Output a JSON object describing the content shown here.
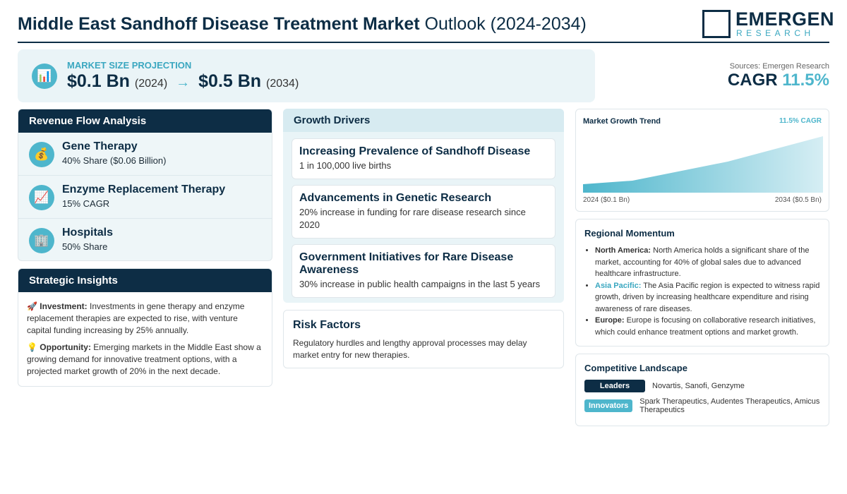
{
  "header": {
    "title_bold": "Middle East Sandhoff Disease Treatment Market",
    "title_rest": "Outlook (2024-2034)",
    "logo_top": "EMERGEN",
    "logo_bottom": "RESEARCH"
  },
  "projection": {
    "icon": "📊",
    "label": "MARKET SIZE PROJECTION",
    "start_value": "$0.1 Bn",
    "start_year": "(2024)",
    "arrow": "→",
    "end_value": "$0.5 Bn",
    "end_year": "(2034)"
  },
  "sources": "Sources: Emergen Research",
  "cagr": {
    "label": "CAGR",
    "value": "11.5%"
  },
  "revenue_flow": {
    "title": "Revenue Flow Analysis",
    "items": [
      {
        "icon": "💰",
        "name": "Gene Therapy",
        "detail": "40% Share ($0.06 Billion)"
      },
      {
        "icon": "📈",
        "name": "Enzyme Replacement Therapy",
        "detail": "15% CAGR"
      },
      {
        "icon": "🏢",
        "name": "Hospitals",
        "detail": "50% Share"
      }
    ]
  },
  "strategic_insights": {
    "title": "Strategic Insights",
    "items": [
      {
        "icon": "🚀",
        "label": "Investment:",
        "text": "Investments in gene therapy and enzyme replacement therapies are expected to rise, with venture capital funding increasing by 25% annually."
      },
      {
        "icon": "💡",
        "label": "Opportunity:",
        "text": "Emerging markets in the Middle East show a growing demand for innovative treatment options, with a projected market growth of 20% in the next decade."
      }
    ]
  },
  "growth_drivers": {
    "title": "Growth Drivers",
    "items": [
      {
        "title": "Increasing Prevalence of Sandhoff Disease",
        "detail": "1 in 100,000 live births"
      },
      {
        "title": "Advancements in Genetic Research",
        "detail": "20% increase in funding for rare disease research since 2020"
      },
      {
        "title": "Government Initiatives for Rare Disease Awareness",
        "detail": "30% increase in public health campaigns in the last 5 years"
      }
    ]
  },
  "risk_factors": {
    "title": "Risk Factors",
    "text": "Regulatory hurdles and lengthy approval processes may delay market entry for new therapies."
  },
  "trend": {
    "title": "Market Growth Trend",
    "cagr": "11.5% CAGR",
    "start": "2024 ($0.1 Bn)",
    "end": "2034 ($0.5 Bn)"
  },
  "regional": {
    "title": "Regional Momentum",
    "items": [
      {
        "label": "North America:",
        "text": "North America holds a significant share of the market, accounting for 40% of global sales due to advanced healthcare infrastructure."
      },
      {
        "label": "Asia Pacific:",
        "text": "The Asia Pacific region is expected to witness rapid growth, driven by increasing healthcare expenditure and rising awareness of rare diseases."
      },
      {
        "label": "Europe:",
        "text": "Europe is focusing on collaborative research initiatives, which could enhance treatment options and market growth."
      }
    ]
  },
  "competitive": {
    "title": "Competitive Landscape",
    "rows": [
      {
        "tag": "Leaders",
        "names": "Novartis, Sanofi, Genzyme"
      },
      {
        "tag": "Innovators",
        "names": "Spark Therapeutics, Audentes Therapeutics, Amicus Therapeutics"
      }
    ]
  }
}
